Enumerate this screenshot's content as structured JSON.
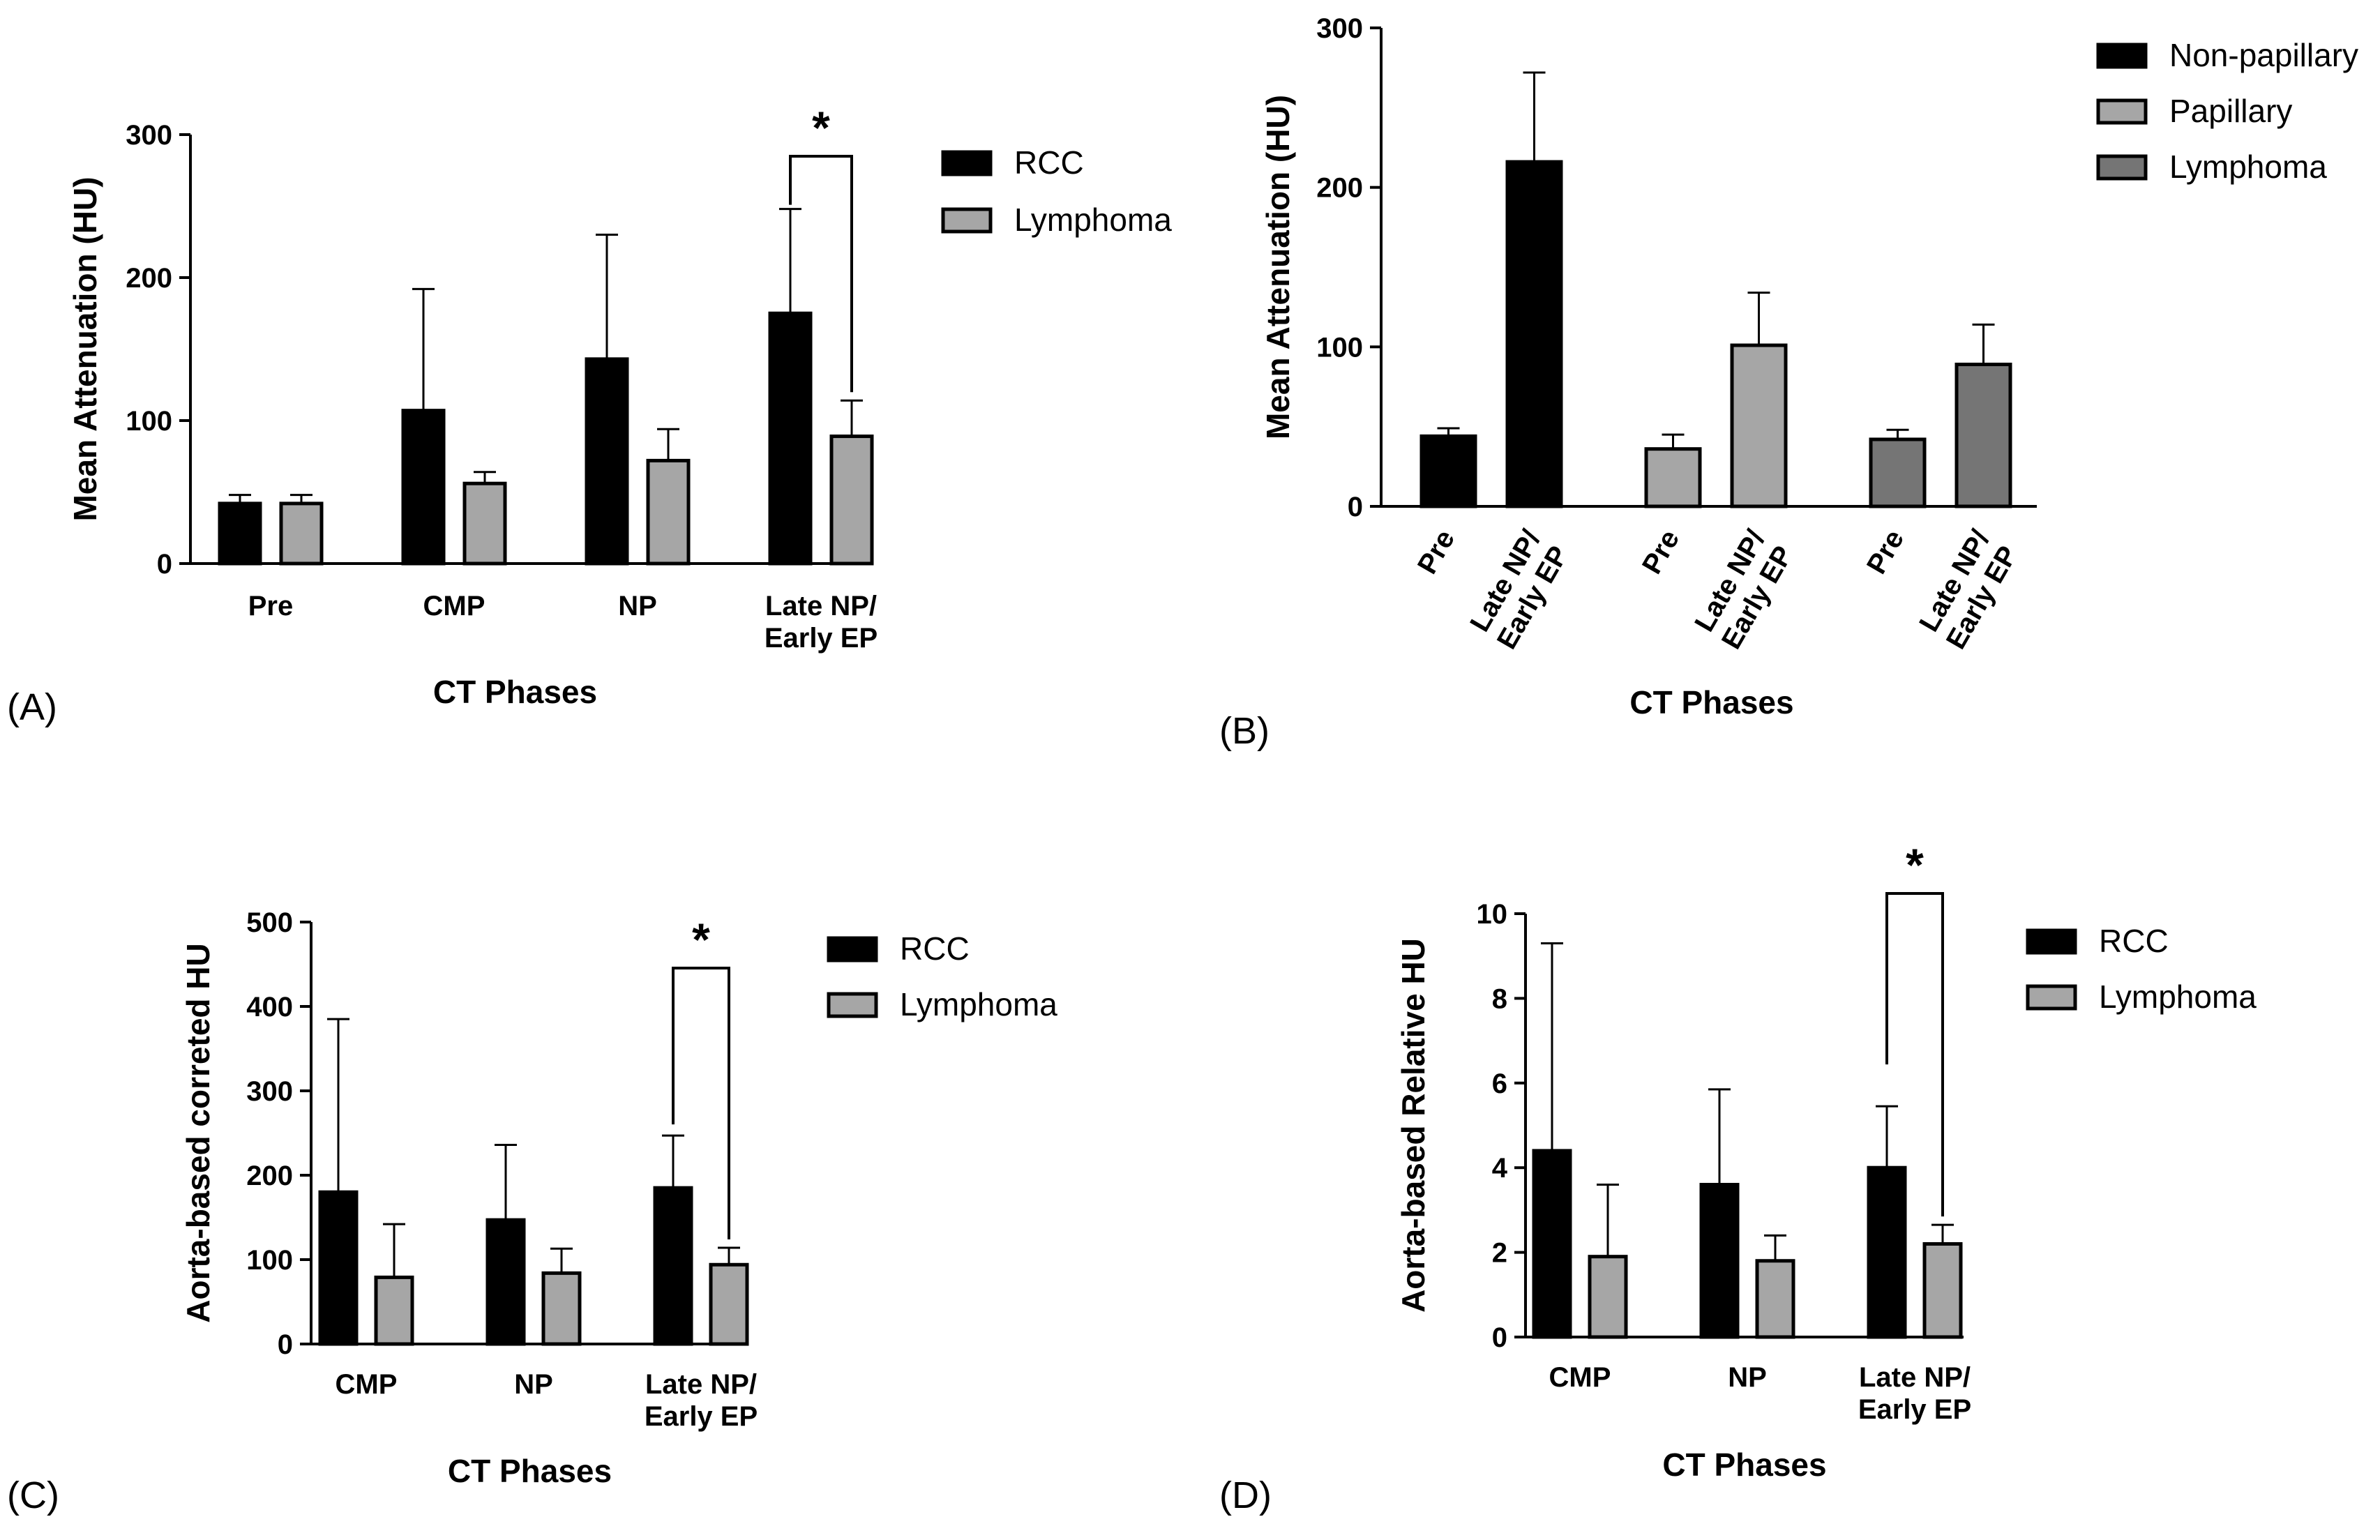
{
  "colors": {
    "black": "#000000",
    "light_gray": "#a6a6a6",
    "dark_gray": "#757575"
  },
  "chart_data": [
    {
      "id": "A",
      "panel_label": "(A)",
      "type": "bar",
      "xlabel": "CT Phases",
      "ylabel": "Mean Attenuation (HU)",
      "ylim": [
        0,
        300
      ],
      "yticks": [
        "0",
        "100",
        "200",
        "300"
      ],
      "categories": [
        "Pre",
        "CMP",
        "NP",
        "Late NP/\nEarly EP"
      ],
      "series": [
        {
          "name": "RCC",
          "color": "#000000",
          "values": [
            42,
            107,
            143,
            175
          ],
          "errors": [
            6,
            85,
            87,
            73
          ]
        },
        {
          "name": "Lymphoma",
          "color": "#a6a6a6",
          "values": [
            42,
            56,
            72,
            89
          ],
          "errors": [
            6,
            8,
            22,
            25
          ]
        }
      ],
      "legend": [
        "RCC",
        "Lymphoma"
      ],
      "significance": [
        {
          "category_index": 3,
          "label": "*"
        }
      ]
    },
    {
      "id": "B",
      "panel_label": "(B)",
      "type": "bar",
      "xlabel": "CT Phases",
      "ylabel": "Mean Attenuation (HU)",
      "ylim": [
        0,
        300
      ],
      "yticks": [
        "0",
        "100",
        "200",
        "300"
      ],
      "group_labels": [
        "Pre",
        "Late NP/\nEarly EP"
      ],
      "groups": [
        {
          "name": "Non-papillary",
          "color": "#000000",
          "values": [
            44,
            216
          ],
          "errors": [
            5,
            56
          ]
        },
        {
          "name": "Papillary",
          "color": "#a6a6a6",
          "values": [
            36,
            101
          ],
          "errors": [
            9,
            33
          ]
        },
        {
          "name": "Lymphoma",
          "color": "#757575",
          "values": [
            42,
            89
          ],
          "errors": [
            6,
            25
          ]
        }
      ],
      "legend": [
        "Non-papillary",
        "Papillary",
        "Lymphoma"
      ]
    },
    {
      "id": "C",
      "panel_label": "(C)",
      "type": "bar",
      "xlabel": "CT Phases",
      "ylabel": "Aorta-based correted HU",
      "ylim": [
        0,
        500
      ],
      "yticks": [
        "0",
        "100",
        "200",
        "300",
        "400",
        "500"
      ],
      "categories": [
        "CMP",
        "NP",
        "Late NP/\nEarly EP"
      ],
      "series": [
        {
          "name": "RCC",
          "color": "#000000",
          "values": [
            180,
            147,
            185
          ],
          "errors": [
            205,
            89,
            62
          ]
        },
        {
          "name": "Lymphoma",
          "color": "#a6a6a6",
          "values": [
            79,
            84,
            94
          ],
          "errors": [
            63,
            29,
            20
          ]
        }
      ],
      "legend": [
        "RCC",
        "Lymphoma"
      ],
      "significance": [
        {
          "category_index": 2,
          "label": "*"
        }
      ]
    },
    {
      "id": "D",
      "panel_label": "(D)",
      "type": "bar",
      "xlabel": "CT Phases",
      "ylabel": "Aorta-based Relative HU",
      "ylim": [
        0,
        10
      ],
      "yticks": [
        "0",
        "2",
        "4",
        "6",
        "8",
        "10"
      ],
      "categories": [
        "CMP",
        "NP",
        "Late NP/\nEarly EP"
      ],
      "series": [
        {
          "name": "RCC",
          "color": "#000000",
          "values": [
            4.4,
            3.6,
            4.0
          ],
          "errors": [
            4.9,
            2.25,
            1.45
          ]
        },
        {
          "name": "Lymphoma",
          "color": "#a6a6a6",
          "values": [
            1.9,
            1.8,
            2.2
          ],
          "errors": [
            1.7,
            0.6,
            0.45
          ]
        }
      ],
      "legend": [
        "RCC",
        "Lymphoma"
      ],
      "significance": [
        {
          "category_index": 2,
          "label": "*"
        }
      ]
    }
  ]
}
